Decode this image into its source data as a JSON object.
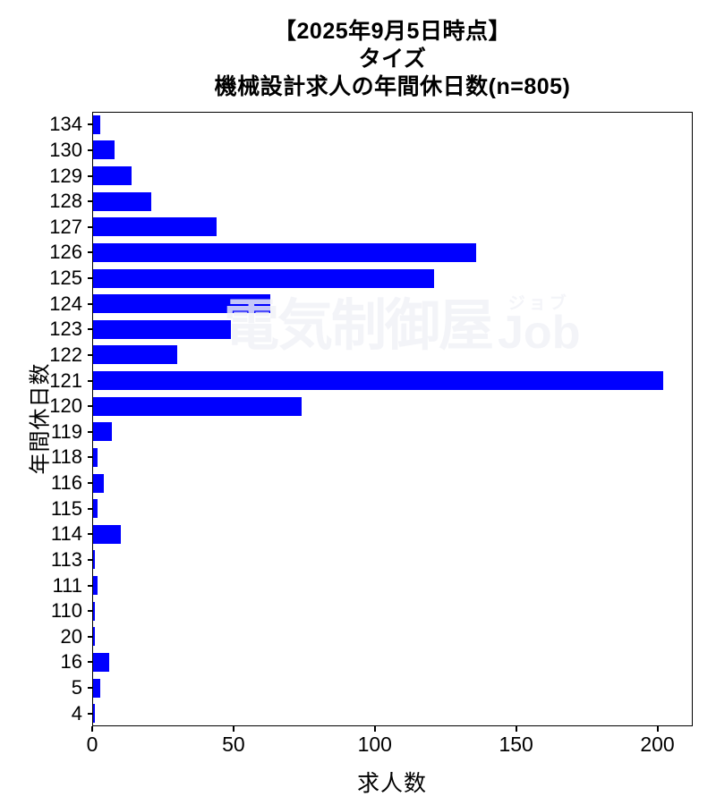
{
  "title": {
    "line1": "【2025年9月5日時点】",
    "line2": "タイズ",
    "line3": "機械設計求人の年間休日数(n=805)"
  },
  "watermark": {
    "main": "電気制御屋",
    "ruby": "ジョブ",
    "latin": "Job"
  },
  "chart_data": {
    "type": "bar",
    "orientation": "horizontal",
    "title": "【2025年9月5日時点】 タイズ 機械設計求人の年間休日数(n=805)",
    "n_total": 805,
    "xlabel": "求人数",
    "ylabel": "年間休日数",
    "categories": [
      "134",
      "130",
      "129",
      "128",
      "127",
      "126",
      "125",
      "124",
      "123",
      "122",
      "121",
      "120",
      "119",
      "118",
      "116",
      "115",
      "114",
      "113",
      "111",
      "110",
      "20",
      "16",
      "5",
      "4"
    ],
    "values": [
      3,
      8,
      14,
      21,
      44,
      136,
      121,
      63,
      49,
      30,
      202,
      74,
      7,
      2,
      4,
      2,
      10,
      1,
      2,
      1,
      1,
      6,
      3,
      1
    ],
    "xticks": [
      0,
      50,
      100,
      150,
      200
    ],
    "xlim": [
      0,
      212.5
    ],
    "bar_color": "#0000ff",
    "grid": false,
    "legend": "none"
  }
}
